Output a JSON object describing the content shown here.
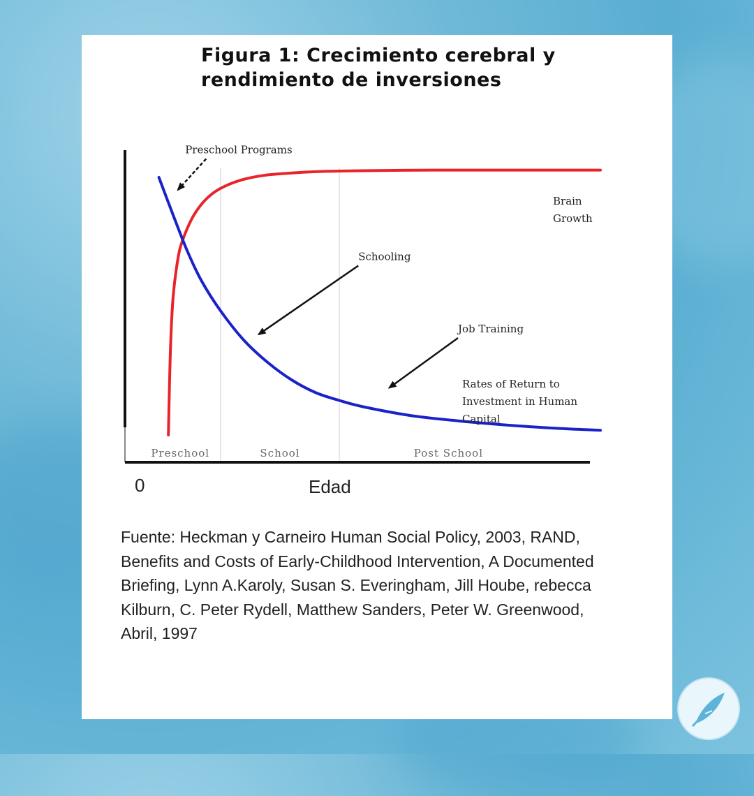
{
  "chart_data": {
    "type": "line",
    "title": "Figura 1: Crecimiento cerebral y rendimiento de inversiones",
    "title_lines": [
      "Figura 1: Crecimiento cerebral y",
      "rendimiento de inversiones"
    ],
    "xlabel": "Edad",
    "x_origin_label": "0",
    "ylabel": "",
    "grid": false,
    "x_range": [
      0,
      10
    ],
    "y_range": [
      0,
      10
    ],
    "stage_dividers": [
      2,
      4.5
    ],
    "stages": [
      {
        "label": "Preschool",
        "x": 1.15
      },
      {
        "label": "School",
        "x": 3.25
      },
      {
        "label": "Post School",
        "x": 6.8
      }
    ],
    "series": [
      {
        "name": "Brain Growth",
        "label_lines": [
          "Brain",
          "Growth"
        ],
        "color": "#e8232a",
        "x": [
          0.9,
          0.92,
          0.95,
          1.0,
          1.1,
          1.2,
          1.4,
          1.6,
          1.8,
          2.0,
          2.3,
          2.6,
          3.0,
          3.5,
          4.0,
          4.5,
          5.5,
          6.5,
          8.0,
          10.0
        ],
        "y": [
          0.6,
          2.0,
          3.6,
          5.0,
          6.2,
          6.8,
          7.5,
          7.95,
          8.25,
          8.45,
          8.65,
          8.78,
          8.88,
          8.94,
          8.98,
          9.0,
          9.02,
          9.03,
          9.03,
          9.03
        ]
      },
      {
        "name": "Rates of Return to Investment in Human Capital",
        "label_lines": [
          "Rates of Return to",
          "Investment in Human",
          "Capital"
        ],
        "color": "#1a22c8",
        "x": [
          0.7,
          1.0,
          1.3,
          1.6,
          2.0,
          2.5,
          3.0,
          3.5,
          4.0,
          4.5,
          5.0,
          6.0,
          7.0,
          8.0,
          9.0,
          10.0
        ],
        "y": [
          8.8,
          7.6,
          6.45,
          5.5,
          4.55,
          3.6,
          2.9,
          2.35,
          1.95,
          1.7,
          1.5,
          1.22,
          1.05,
          0.92,
          0.82,
          0.75
        ]
      }
    ],
    "annotations": [
      {
        "label": "Preschool Programs",
        "x": 1.4,
        "y": 9.7,
        "arrow_to": [
          1.1,
          8.4
        ]
      },
      {
        "label": "Schooling",
        "x": 4.9,
        "y": 6.3,
        "arrow_to": [
          2.8,
          3.8
        ]
      },
      {
        "label": "Job Training",
        "x": 7.0,
        "y": 4.0,
        "arrow_to": [
          5.55,
          2.1
        ]
      }
    ]
  },
  "source": "Fuente: Heckman y Carneiro Human Social Policy, 2003, RAND, Benefits and Costs of Early-Childhood Intervention, A Documented Briefing, Lynn A.Karoly, Susan S. Everingham, Jill Hoube, rebecca Kilburn, C. Peter Rydell, Matthew Sanders, Peter W. Greenwood, Abril, 1997",
  "logo": {
    "icon": "feather-quill-icon"
  }
}
